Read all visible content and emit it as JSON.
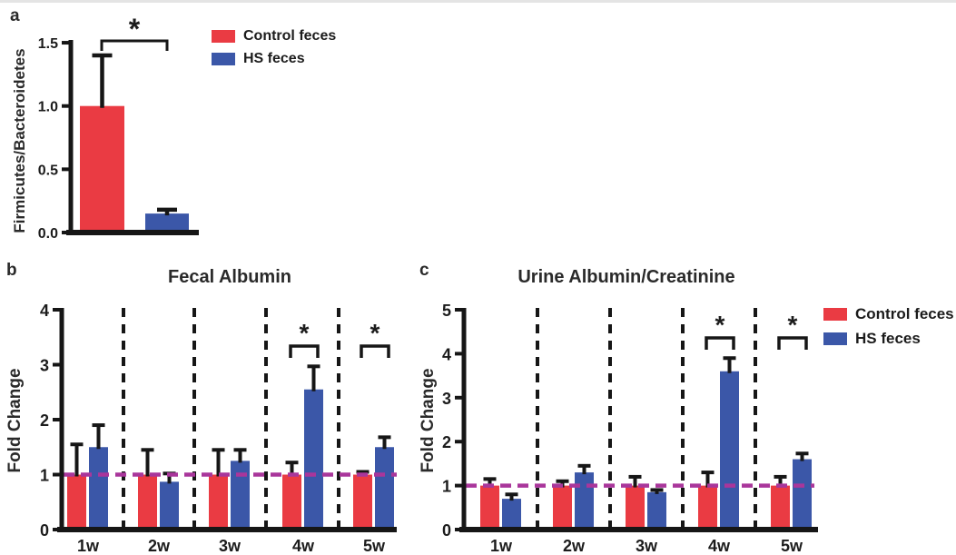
{
  "colors": {
    "control": "#EA3B43",
    "hs": "#3B57A8",
    "reference_line": "#A9369B",
    "axis": "#161616",
    "background": "#FFFFFF"
  },
  "legend": {
    "items": [
      {
        "label": "Control feces",
        "color_key": "control"
      },
      {
        "label": "HS feces",
        "color_key": "hs"
      }
    ]
  },
  "panels": {
    "a": {
      "letter": "a",
      "ylabel": "Firmicutes/Bacteroidetes"
    },
    "b": {
      "letter": "b",
      "title": "Fecal Albumin",
      "ylabel": "Fold Change"
    },
    "c": {
      "letter": "c",
      "title": "Urine Albumin/Creatinine",
      "ylabel": "Fold Change"
    }
  },
  "chart_data": [
    {
      "id": "a",
      "type": "bar",
      "title": "",
      "ylabel": "Firmicutes/Bacteroidetes",
      "ylim": [
        0,
        1.5
      ],
      "yticks": [
        "0.0",
        "0.5",
        "1.0",
        "1.5"
      ],
      "grid": false,
      "bars": [
        {
          "name": "Control feces",
          "color_key": "control",
          "value": 1.0,
          "error_upper": 0.4
        },
        {
          "name": "HS feces",
          "color_key": "hs",
          "value": 0.15,
          "error_upper": 0.03
        }
      ],
      "significance": [
        {
          "compare": [
            "Control feces",
            "HS feces"
          ],
          "label": "*"
        }
      ]
    },
    {
      "id": "b",
      "type": "bar",
      "title": "Fecal Albumin",
      "xlabel": "",
      "ylabel": "Fold Change",
      "ylim": [
        0,
        4
      ],
      "yticks": [
        0,
        1,
        2,
        3,
        4
      ],
      "grid": false,
      "categories": [
        "1w",
        "2w",
        "3w",
        "4w",
        "5w"
      ],
      "series": [
        {
          "name": "Control feces",
          "color_key": "control",
          "values": [
            1.0,
            1.0,
            1.0,
            1.0,
            1.0
          ],
          "errors_upper": [
            0.55,
            0.45,
            0.45,
            0.22,
            0.05
          ]
        },
        {
          "name": "HS feces",
          "color_key": "hs",
          "values": [
            1.5,
            0.87,
            1.25,
            2.55,
            1.5
          ],
          "errors_upper": [
            0.4,
            0.15,
            0.2,
            0.42,
            0.18
          ]
        }
      ],
      "reference_line_y": 1.0,
      "group_separators": true,
      "significance": [
        {
          "category": "4w",
          "label": "*"
        },
        {
          "category": "5w",
          "label": "*"
        }
      ],
      "legend_position": "none"
    },
    {
      "id": "c",
      "type": "bar",
      "title": "Urine Albumin/Creatinine",
      "xlabel": "",
      "ylabel": "Fold Change",
      "ylim": [
        0,
        5
      ],
      "yticks": [
        0,
        1,
        2,
        3,
        4,
        5
      ],
      "grid": false,
      "categories": [
        "1w",
        "2w",
        "3w",
        "4w",
        "5w"
      ],
      "series": [
        {
          "name": "Control feces",
          "color_key": "control",
          "values": [
            1.0,
            1.0,
            1.0,
            1.0,
            1.0
          ],
          "errors_upper": [
            0.15,
            0.1,
            0.2,
            0.3,
            0.2
          ]
        },
        {
          "name": "HS feces",
          "color_key": "hs",
          "values": [
            0.7,
            1.3,
            0.85,
            3.6,
            1.6
          ],
          "errors_upper": [
            0.1,
            0.15,
            0.05,
            0.3,
            0.13
          ]
        }
      ],
      "reference_line_y": 1.0,
      "group_separators": true,
      "significance": [
        {
          "category": "4w",
          "label": "*"
        },
        {
          "category": "5w",
          "label": "*"
        }
      ],
      "legend_position": "right"
    }
  ]
}
